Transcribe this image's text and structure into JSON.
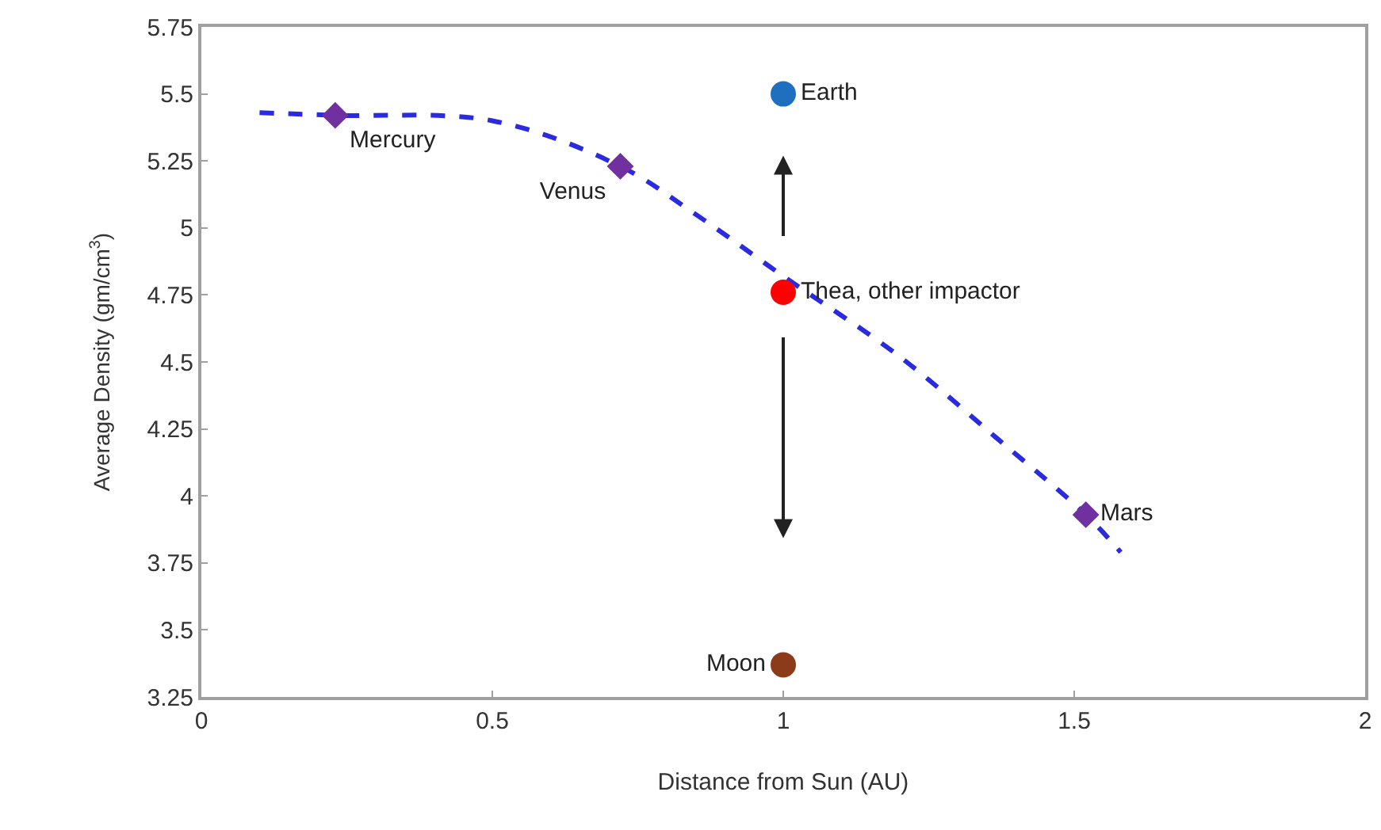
{
  "chart_data": {
    "type": "scatter",
    "xlabel": "Distance from Sun (AU)",
    "ylabel": "Average Density (gm/cm$^{3}$)",
    "xlim": [
      0,
      2
    ],
    "xticks": [
      0,
      0.5,
      1,
      1.5,
      2
    ],
    "ylim": [
      3.25,
      5.75
    ],
    "yticks": [
      3.25,
      3.5,
      3.75,
      4,
      4.25,
      4.5,
      4.75,
      5,
      5.25,
      5.5,
      5.75
    ],
    "legend": false,
    "series": [
      {
        "type": "line",
        "line_style": "dashed",
        "marker": "none",
        "color": "#2a2ae0",
        "x": [
          0.1,
          0.23,
          0.5,
          0.72,
          0.85,
          1.0,
          1.2,
          1.37,
          1.52,
          1.58
        ],
        "values": [
          5.43,
          5.42,
          5.4,
          5.23,
          5.05,
          4.82,
          4.52,
          4.21,
          3.93,
          3.79
        ]
      },
      {
        "name": "Mercury",
        "marker": "diamond",
        "color": "#7030a0",
        "x": [
          0.23
        ],
        "values": [
          5.42
        ]
      },
      {
        "name": "Venus",
        "marker": "diamond",
        "color": "#7030a0",
        "x": [
          0.72
        ],
        "values": [
          5.23
        ]
      },
      {
        "name": "Mars",
        "marker": "diamond",
        "color": "#7030a0",
        "x": [
          1.52
        ],
        "values": [
          3.93
        ]
      },
      {
        "name": "Earth",
        "marker": "circle",
        "color": "#1f6fc0",
        "x": [
          1
        ],
        "values": [
          5.5
        ]
      },
      {
        "name": "Thea, other impactor",
        "marker": "circle",
        "color": "#ff0000",
        "x": [
          1
        ],
        "values": [
          4.76
        ]
      },
      {
        "name": "Moon",
        "marker": "circle",
        "color": "#8b3a1a",
        "x": [
          1
        ],
        "values": [
          3.37
        ]
      }
    ]
  }
}
